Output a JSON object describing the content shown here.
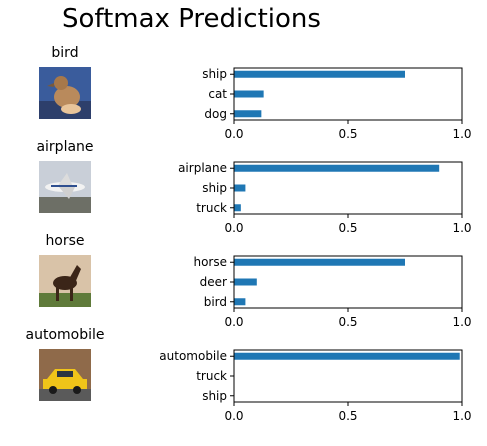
{
  "title": "Softmax Predictions",
  "colors": {
    "bar": "#1f77b4",
    "axis": "#000000"
  },
  "samples": [
    {
      "label": "bird",
      "image_icon": "bird-photo-icon"
    },
    {
      "label": "airplane",
      "image_icon": "airplane-photo-icon"
    },
    {
      "label": "horse",
      "image_icon": "horse-photo-icon"
    },
    {
      "label": "automobile",
      "image_icon": "taxi-photo-icon"
    }
  ],
  "chart_data": [
    {
      "type": "bar",
      "orientation": "horizontal",
      "categories": [
        "ship",
        "cat",
        "dog"
      ],
      "values": [
        0.75,
        0.13,
        0.12
      ],
      "xlim": [
        0,
        1
      ],
      "xticks": [
        "0.0",
        "0.5",
        "1.0"
      ]
    },
    {
      "type": "bar",
      "orientation": "horizontal",
      "categories": [
        "airplane",
        "ship",
        "truck"
      ],
      "values": [
        0.9,
        0.05,
        0.03
      ],
      "xlim": [
        0,
        1
      ],
      "xticks": [
        "0.0",
        "0.5",
        "1.0"
      ]
    },
    {
      "type": "bar",
      "orientation": "horizontal",
      "categories": [
        "horse",
        "deer",
        "bird"
      ],
      "values": [
        0.75,
        0.1,
        0.05
      ],
      "xlim": [
        0,
        1
      ],
      "xticks": [
        "0.0",
        "0.5",
        "1.0"
      ]
    },
    {
      "type": "bar",
      "orientation": "horizontal",
      "categories": [
        "automobile",
        "truck",
        "ship"
      ],
      "values": [
        0.99,
        0.0,
        0.0
      ],
      "xlim": [
        0,
        1
      ],
      "xticks": [
        "0.0",
        "0.5",
        "1.0"
      ]
    }
  ]
}
